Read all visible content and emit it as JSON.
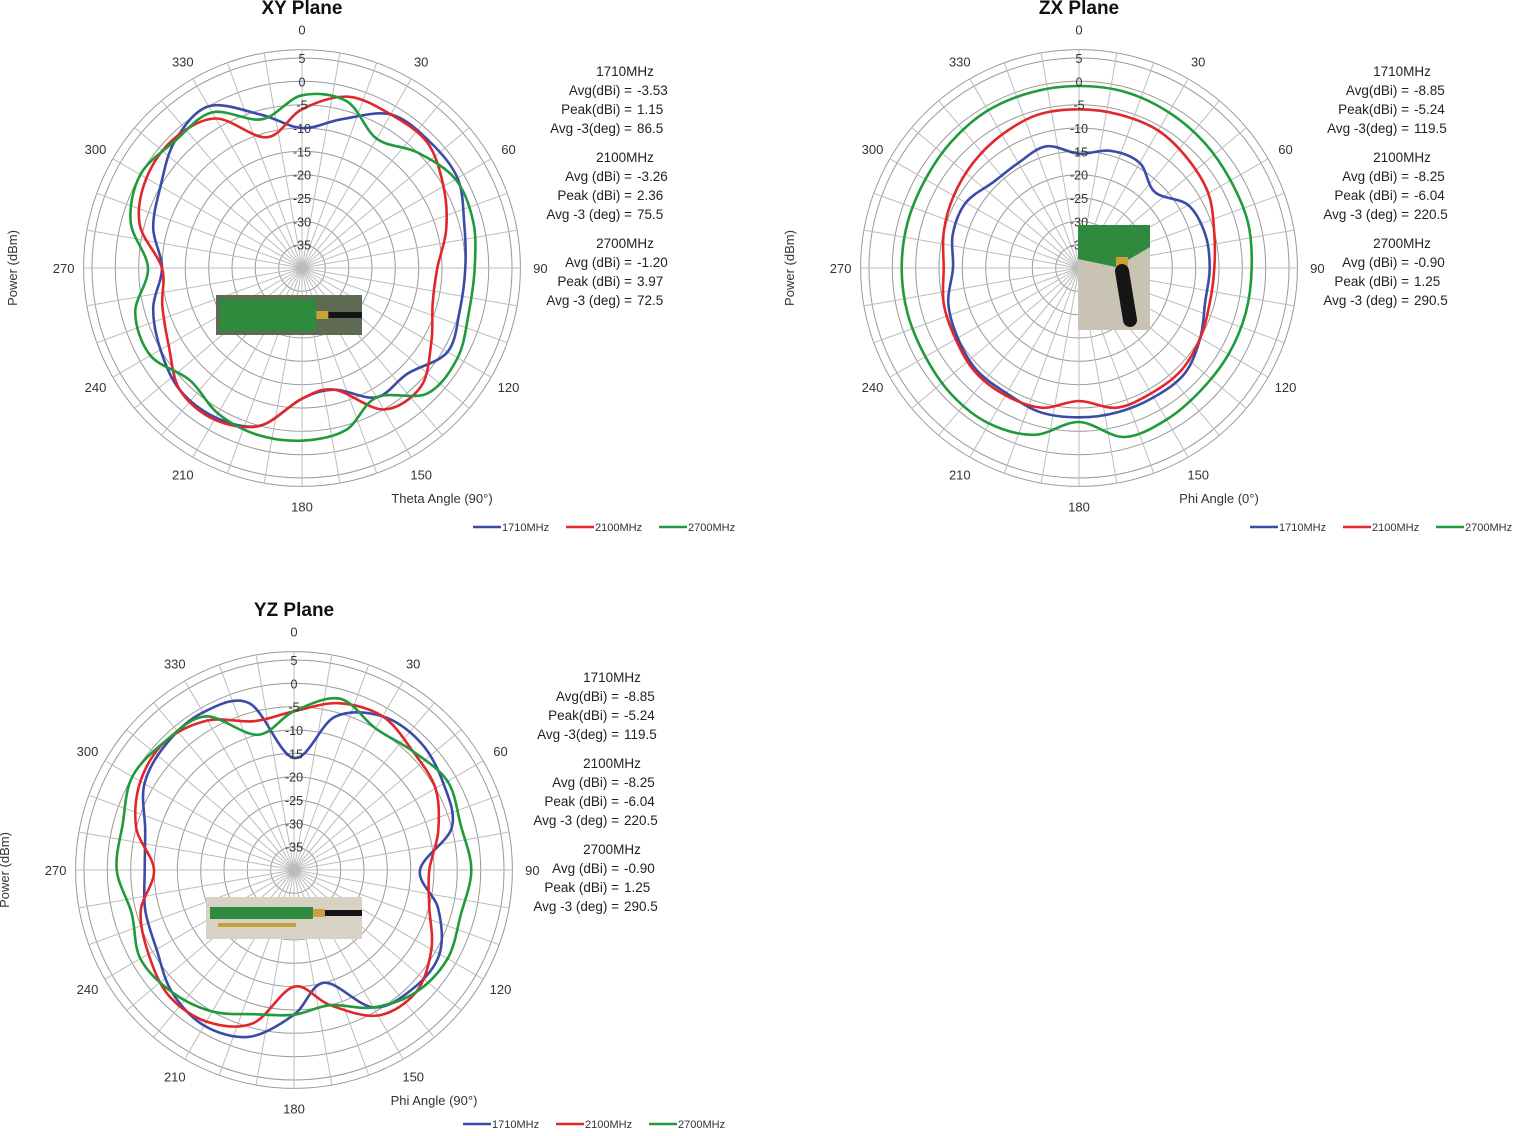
{
  "legend_labels": [
    "1710MHz",
    "2100MHz",
    "2700MHz"
  ],
  "colors": {
    "1710MHz": "#3a4ca8",
    "2100MHz": "#e2262a",
    "2700MHz": "#1f9a3c"
  },
  "chart_data": [
    {
      "id": "xy",
      "type": "polar",
      "title": "XY Plane",
      "xlabel": "Theta Angle (90°)",
      "ylabel": "Power (dBm)",
      "angle_ticks": [
        0,
        30,
        60,
        90,
        120,
        150,
        180,
        210,
        240,
        270,
        300,
        330
      ],
      "radial_ticks": [
        5,
        0,
        -5,
        -10,
        -15,
        -20,
        -25,
        -30,
        -35
      ],
      "rlim": [
        -40,
        5
      ],
      "grid": true,
      "legend_position": "bottom-right",
      "photo": "antenna-board-xy-photo",
      "stats": [
        {
          "band": "1710MHz",
          "lines": [
            [
              "Avg(dBi) =",
              "-3.53"
            ],
            [
              "Peak(dBi) =",
              "1.15"
            ],
            [
              "Avg -3(deg) =",
              "86.5"
            ]
          ]
        },
        {
          "band": "2100MHz",
          "lines": [
            [
              "Avg (dBi) =",
              "-3.26"
            ],
            [
              "Peak (dBi) =",
              "2.36"
            ],
            [
              "Avg -3 (deg) =",
              "75.5"
            ]
          ]
        },
        {
          "band": "2700MHz",
          "lines": [
            [
              "Avg (dBi) =",
              "-1.20"
            ],
            [
              "Peak (dBi) =",
              "3.97"
            ],
            [
              "Avg -3 (deg) =",
              "72.5"
            ]
          ]
        }
      ],
      "series": [
        {
          "name": "1710MHz",
          "theta": [
            0,
            15,
            30,
            45,
            60,
            75,
            90,
            105,
            120,
            135,
            150,
            165,
            180,
            195,
            210,
            225,
            240,
            255,
            270,
            285,
            300,
            315,
            330,
            345
          ],
          "r": [
            -10,
            -7,
            -2,
            -1.5,
            -1.5,
            -4,
            -5,
            -5,
            -4,
            -8,
            -8,
            -13,
            -12,
            -5,
            -3,
            -3,
            -5,
            -7,
            -10,
            -7,
            -5,
            -1.5,
            0,
            -6
          ]
        },
        {
          "name": "2100MHz",
          "theta": [
            0,
            15,
            30,
            45,
            60,
            75,
            90,
            105,
            120,
            135,
            150,
            165,
            180,
            195,
            210,
            225,
            240,
            255,
            270,
            285,
            300,
            315,
            330,
            345
          ],
          "r": [
            -6,
            -2,
            -2,
            -2,
            -5,
            -8,
            -11,
            -11,
            -8,
            -4,
            -5,
            -13,
            -12,
            -5,
            -2.5,
            -3,
            -7,
            -9,
            -10,
            -4,
            -1.5,
            -1,
            -3,
            -11
          ]
        },
        {
          "name": "2700MHz",
          "theta": [
            0,
            15,
            30,
            45,
            60,
            75,
            90,
            105,
            120,
            135,
            150,
            165,
            180,
            195,
            210,
            225,
            240,
            255,
            270,
            285,
            300,
            315,
            330,
            345
          ],
          "r": [
            -3,
            -3,
            -8,
            -5,
            -2,
            -2,
            -3,
            -3,
            -1.5,
            -2,
            -8,
            -4,
            -3,
            -3,
            -4,
            -6,
            -2.5,
            -3,
            -7,
            -2,
            0,
            -1.5,
            -1.5,
            -7
          ]
        }
      ]
    },
    {
      "id": "zx",
      "type": "polar",
      "title": "ZX Plane",
      "xlabel": "Phi Angle (0°)",
      "ylabel": "Power (dBm)",
      "angle_ticks": [
        0,
        30,
        60,
        90,
        120,
        150,
        180,
        210,
        240,
        270,
        300,
        330
      ],
      "radial_ticks": [
        5,
        0,
        -5,
        -10,
        -15,
        -20,
        -25,
        -30,
        -35
      ],
      "rlim": [
        -40,
        5
      ],
      "grid": true,
      "legend_position": "bottom-right",
      "photo": "antenna-stick-zx-photo",
      "stats": [
        {
          "band": "1710MHz",
          "lines": [
            [
              "Avg(dBi) =",
              "-8.85"
            ],
            [
              "Peak(dBi) =",
              "-5.24"
            ],
            [
              "Avg -3(deg) =",
              "119.5"
            ]
          ]
        },
        {
          "band": "2100MHz",
          "lines": [
            [
              "Avg (dBi) =",
              "-8.25"
            ],
            [
              "Peak (dBi) =",
              "-6.04"
            ],
            [
              "Avg -3 (deg) =",
              "220.5"
            ]
          ]
        },
        {
          "band": "2700MHz",
          "lines": [
            [
              "Avg (dBi) =",
              "-0.90"
            ],
            [
              "Peak (dBi) =",
              "1.25"
            ],
            [
              "Avg -3 (deg) =",
              "290.5"
            ]
          ]
        }
      ],
      "series": [
        {
          "name": "1710MHz",
          "theta": [
            0,
            15,
            30,
            45,
            60,
            75,
            90,
            105,
            120,
            135,
            150,
            165,
            180,
            195,
            210,
            225,
            240,
            255,
            270,
            285,
            300,
            315,
            330,
            345
          ],
          "r": [
            -15.5,
            -14,
            -14,
            -17,
            -13,
            -12,
            -12,
            -12,
            -10,
            -8,
            -8,
            -8,
            -8,
            -8,
            -9,
            -9,
            -10,
            -11,
            -13,
            -12,
            -12,
            -14,
            -14,
            -13
          ]
        },
        {
          "name": "2100MHz",
          "theta": [
            0,
            15,
            30,
            45,
            60,
            75,
            90,
            105,
            120,
            135,
            150,
            165,
            180,
            195,
            210,
            225,
            240,
            255,
            270,
            285,
            300,
            315,
            330,
            345
          ],
          "r": [
            -6,
            -6,
            -6,
            -7,
            -8,
            -10,
            -11,
            -11,
            -10,
            -9,
            -9,
            -9,
            -11.5,
            -9,
            -8.5,
            -8.5,
            -9.5,
            -10,
            -11,
            -10,
            -9,
            -8,
            -7,
            -6
          ]
        },
        {
          "name": "2700MHz",
          "theta": [
            0,
            15,
            30,
            45,
            60,
            75,
            90,
            105,
            120,
            135,
            150,
            165,
            180,
            195,
            210,
            225,
            240,
            255,
            270,
            285,
            300,
            315,
            330,
            345
          ],
          "r": [
            -1,
            -1,
            -1.5,
            -2,
            -2.5,
            -2.5,
            -3,
            -3,
            -3,
            -3,
            -2.5,
            -2.5,
            -7,
            -3,
            -1.5,
            -1.5,
            -2,
            -2,
            -2,
            -2,
            -2,
            -1.5,
            -1,
            -1
          ]
        }
      ]
    },
    {
      "id": "yz",
      "type": "polar",
      "title": "YZ Plane",
      "xlabel": "Phi Angle (90°)",
      "ylabel": "Power (dBm)",
      "angle_ticks": [
        0,
        30,
        60,
        90,
        120,
        150,
        180,
        210,
        240,
        270,
        300,
        330
      ],
      "radial_ticks": [
        5,
        0,
        -5,
        -10,
        -15,
        -20,
        -25,
        -30,
        -35
      ],
      "rlim": [
        -40,
        5
      ],
      "grid": true,
      "legend_position": "bottom-right",
      "photo": "antenna-board-yz-photo",
      "stats": [
        {
          "band": "1710MHz",
          "lines": [
            [
              "Avg(dBi) =",
              "-8.85"
            ],
            [
              "Peak(dBi) =",
              "-5.24"
            ],
            [
              "Avg -3(deg) =",
              "119.5"
            ]
          ]
        },
        {
          "band": "2100MHz",
          "lines": [
            [
              "Avg (dBi) =",
              "-8.25"
            ],
            [
              "Peak (dBi) =",
              "-6.04"
            ],
            [
              "Avg -3 (deg) =",
              "220.5"
            ]
          ]
        },
        {
          "band": "2700MHz",
          "lines": [
            [
              "Avg (dBi) =",
              "-0.90"
            ],
            [
              "Peak (dBi) =",
              "1.25"
            ],
            [
              "Avg -3 (deg) =",
              "290.5"
            ]
          ]
        }
      ],
      "series": [
        {
          "name": "1710MHz",
          "theta": [
            0,
            15,
            30,
            45,
            60,
            75,
            90,
            105,
            120,
            135,
            150,
            165,
            180,
            195,
            210,
            225,
            240,
            255,
            270,
            285,
            300,
            315,
            330,
            345
          ],
          "r": [
            -16,
            -6,
            -2,
            -1.5,
            -3,
            -5,
            -13,
            -8,
            -4,
            -4,
            -6,
            -15,
            -9,
            -3,
            -1.5,
            -3,
            -6,
            -7,
            -8,
            -7,
            -3,
            -1.5,
            -1,
            -3
          ]
        },
        {
          "name": "2100MHz",
          "theta": [
            0,
            15,
            30,
            45,
            60,
            75,
            90,
            105,
            120,
            135,
            150,
            165,
            180,
            195,
            210,
            225,
            240,
            255,
            270,
            285,
            300,
            315,
            330,
            345
          ],
          "r": [
            -6,
            -3,
            -2,
            -4,
            -5,
            -8,
            -11,
            -10,
            -6,
            -3,
            -4,
            -10,
            -15,
            -6,
            -2.5,
            -2,
            -4,
            -6,
            -10,
            -5,
            -2,
            -1,
            -3,
            -7
          ]
        },
        {
          "name": "2700MHz",
          "theta": [
            0,
            15,
            30,
            45,
            60,
            75,
            90,
            105,
            120,
            135,
            150,
            165,
            180,
            195,
            210,
            225,
            240,
            255,
            270,
            285,
            300,
            315,
            330,
            345
          ],
          "r": [
            -6,
            -2,
            -5,
            -4,
            -2,
            -3,
            -2,
            -3,
            -2,
            -3,
            -6,
            -10,
            -9,
            -8,
            -5,
            -3,
            -2,
            -4,
            -2,
            -2,
            0,
            -1,
            -2,
            -10
          ]
        }
      ]
    }
  ]
}
